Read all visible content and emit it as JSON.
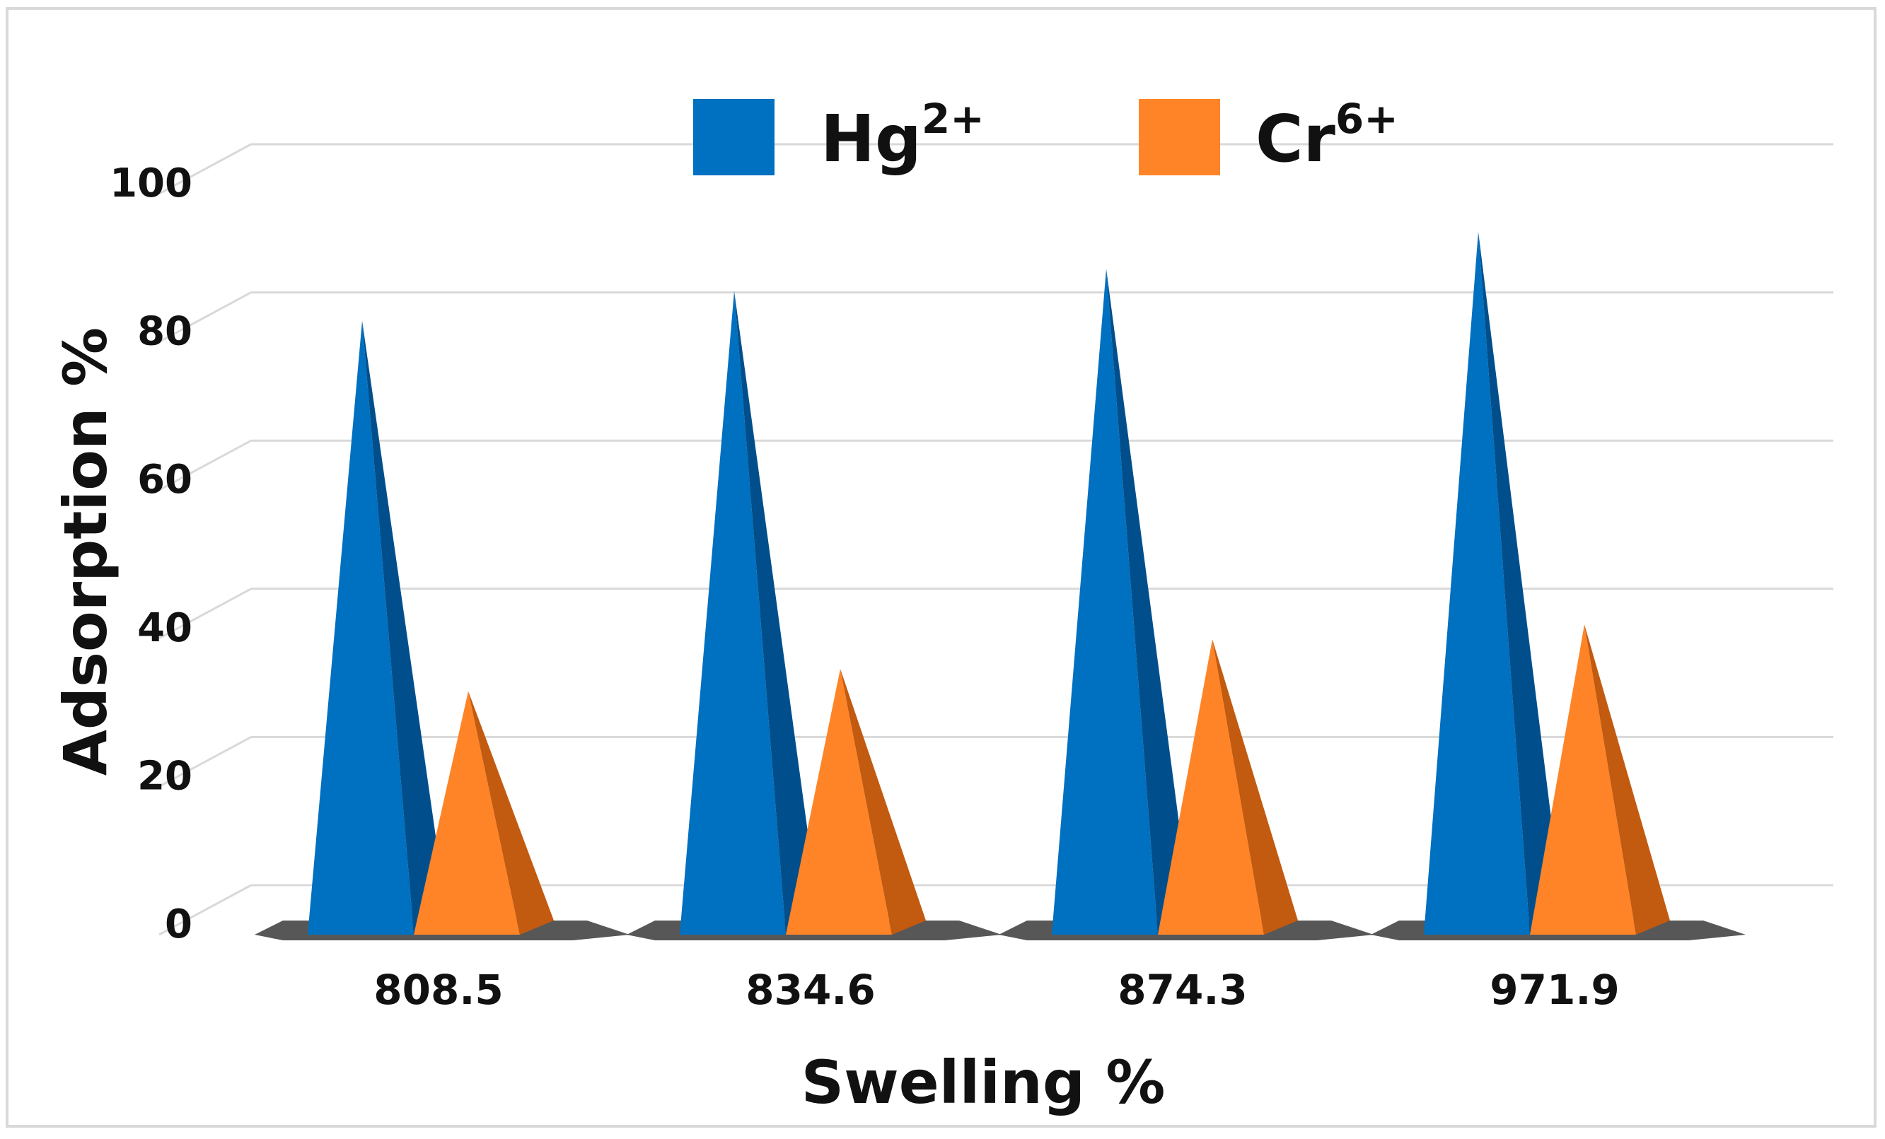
{
  "chart_data": {
    "type": "bar",
    "style": "3d-pyramid",
    "title": "",
    "xlabel": "Swelling %",
    "ylabel": "Adsorption %",
    "categories": [
      "808.5",
      "834.6",
      "874.3",
      "971.9"
    ],
    "ylim": [
      0,
      100
    ],
    "yticks": [
      "0",
      "20",
      "40",
      "60",
      "80",
      "100"
    ],
    "grid": true,
    "legend_position": "top",
    "series": [
      {
        "name": "Hg",
        "superscript": "2+",
        "color": "#0070c0",
        "shade": "#004f8c",
        "values": [
          80,
          84,
          87,
          92
        ]
      },
      {
        "name": "Cr",
        "superscript": "6+",
        "color": "#ff8427",
        "shade": "#c25a10",
        "values": [
          30,
          33,
          37,
          39
        ]
      }
    ]
  }
}
